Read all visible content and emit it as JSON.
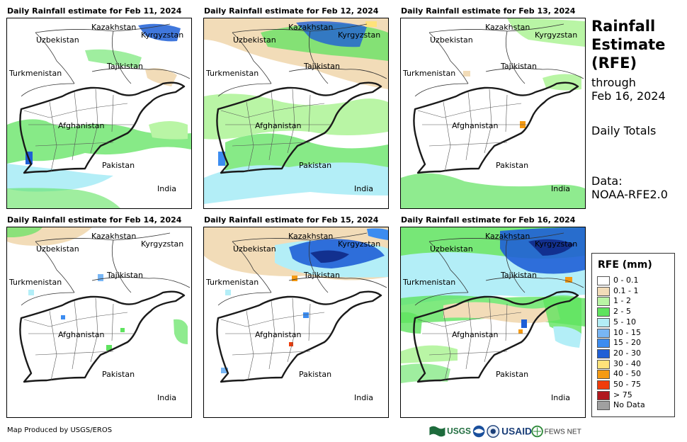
{
  "panels": [
    {
      "title": "Daily Rainfall estimate for Feb 11, 2024"
    },
    {
      "title": "Daily Rainfall estimate for Feb 12, 2024"
    },
    {
      "title": "Daily Rainfall estimate for Feb 13, 2024"
    },
    {
      "title": "Daily Rainfall estimate for Feb 14, 2024"
    },
    {
      "title": "Daily Rainfall estimate for Feb 15, 2024"
    },
    {
      "title": "Daily Rainfall estimate for Feb 16, 2024"
    }
  ],
  "map_labels": {
    "kazakhstan": "Kazakhstan",
    "kyrgyzstan": "Kyrgyzstan",
    "uzbekistan": "Uzbekistan",
    "tajikistan": "Tajikistan",
    "turkmenistan": "Turkmenistan",
    "afghanistan": "Afghanistan",
    "pakistan": "Pakistan",
    "india": "India"
  },
  "side": {
    "title_line1": "Rainfall",
    "title_line2": "Estimate",
    "title_line3": "(RFE)",
    "through": "through",
    "through_date": "Feb 16, 2024",
    "daily_totals": "Daily Totals",
    "data_label": "Data:",
    "data_source": "NOAA-RFE2.0"
  },
  "legend": {
    "title": "RFE (mm)",
    "items": [
      {
        "label": "0 - 0.1",
        "color": "#ffffff"
      },
      {
        "label": "0.1 - 1",
        "color": "#f2dcb8"
      },
      {
        "label": "1 - 2",
        "color": "#b9f5a5"
      },
      {
        "label": "2 - 5",
        "color": "#5fe35f"
      },
      {
        "label": "5 - 10",
        "color": "#b3eef7"
      },
      {
        "label": "10 - 15",
        "color": "#78b6f5"
      },
      {
        "label": "15 - 20",
        "color": "#3c8cf0"
      },
      {
        "label": "20 - 30",
        "color": "#1f5fd6"
      },
      {
        "label": "30 - 40",
        "color": "#ffe27a"
      },
      {
        "label": "40 - 50",
        "color": "#f59a12"
      },
      {
        "label": "50 - 75",
        "color": "#f03c0a"
      },
      {
        "label": "> 75",
        "color": "#b0181e"
      },
      {
        "label": "No Data",
        "color": "#a0a0a0"
      }
    ]
  },
  "footer": {
    "credit": "Map Produced by USGS/EROS",
    "logo_usgs": "USGS",
    "logo_usaid": "USAID",
    "logo_fews": "FEWS NET"
  }
}
